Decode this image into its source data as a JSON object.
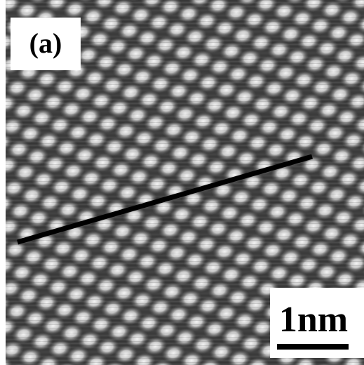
{
  "panel_label": "(a)",
  "scale_bar": {
    "label": "1nm"
  }
}
